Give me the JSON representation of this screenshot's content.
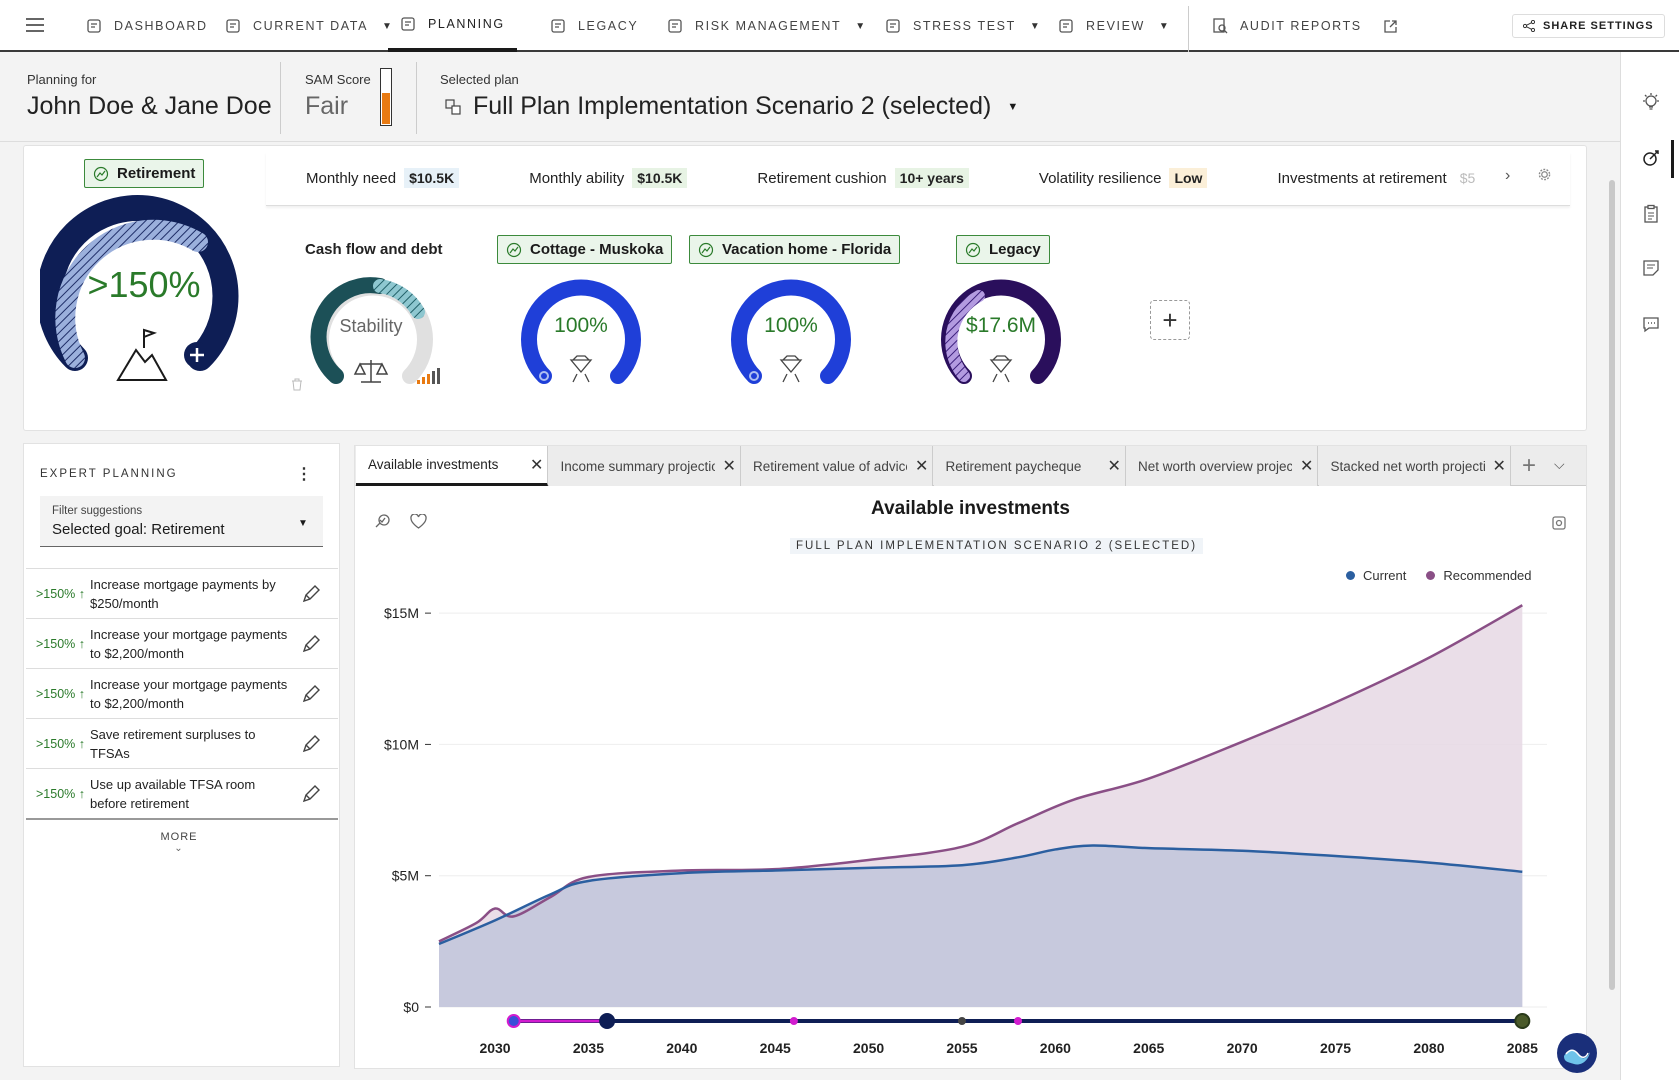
{
  "nav": {
    "items": [
      {
        "label": "DASHBOARD",
        "dropdown": false,
        "icon": "dashboard-icon"
      },
      {
        "label": "CURRENT DATA",
        "dropdown": true,
        "icon": "people-icon"
      },
      {
        "label": "PLANNING",
        "dropdown": false,
        "icon": "planning-icon",
        "active": true
      },
      {
        "label": "LEGACY",
        "dropdown": false,
        "icon": "legacy-icon"
      },
      {
        "label": "RISK MANAGEMENT",
        "dropdown": true,
        "icon": "shield-icon"
      },
      {
        "label": "STRESS TEST",
        "dropdown": true,
        "icon": "diamond-icon"
      },
      {
        "label": "REVIEW",
        "dropdown": true,
        "icon": "review-icon"
      }
    ],
    "audit_label": "AUDIT REPORTS",
    "share_label": "SHARE SETTINGS"
  },
  "header": {
    "planning_for_label": "Planning for",
    "client_names": "John Doe & Jane Doe",
    "sam_label": "SAM Score",
    "sam_value": "Fair",
    "sam_level": 0.55,
    "selected_plan_label": "Selected plan",
    "selected_plan": "Full Plan Implementation Scenario 2 (selected)"
  },
  "goals": {
    "retirement": {
      "label": "Retirement",
      "value": ">150%"
    },
    "metrics": [
      {
        "label": "Monthly need",
        "value": "$10.5K",
        "tone": "blue"
      },
      {
        "label": "Monthly ability",
        "value": "$10.5K",
        "tone": "green"
      },
      {
        "label": "Retirement cushion",
        "value": "10+ years",
        "tone": "green"
      },
      {
        "label": "Volatility resilience",
        "value": "Low",
        "tone": "tan"
      },
      {
        "label": "Investments at retirement",
        "value": "$5",
        "tone": "none"
      }
    ],
    "cashflow": {
      "label": "Cash flow and debt",
      "value": "Stability"
    },
    "others": [
      {
        "label": "Cottage - Muskoka",
        "value": "100%"
      },
      {
        "label": "Vacation home - Florida",
        "value": "100%"
      },
      {
        "label": "Legacy",
        "value": "$17.6M"
      }
    ]
  },
  "expert": {
    "title": "EXPERT PLANNING",
    "filter_label": "Filter suggestions",
    "filter_value": "Selected goal: Retirement",
    "suggestions": [
      {
        "pct": ">150%",
        "text": "Increase mortgage payments by $250/month"
      },
      {
        "pct": ">150%",
        "text": "Increase your mortgage payments to $2,200/month"
      },
      {
        "pct": ">150%",
        "text": "Increase your mortgage payments to $2,200/month"
      },
      {
        "pct": ">150%",
        "text": "Save retirement surpluses to TFSAs"
      },
      {
        "pct": ">150%",
        "text": "Use up available TFSA room before retirement"
      }
    ],
    "more_label": "MORE"
  },
  "tabs": [
    {
      "label": "Available investments",
      "active": true
    },
    {
      "label": "Income summary projection",
      "active": false
    },
    {
      "label": "Retirement value of advice",
      "active": false
    },
    {
      "label": "Retirement paycheque",
      "active": false
    },
    {
      "label": "Net worth overview projection",
      "active": false
    },
    {
      "label": "Stacked net worth projection",
      "active": false
    }
  ],
  "chart_panel": {
    "title": "Available investments",
    "plan_tag": "FULL PLAN IMPLEMENTATION SCENARIO 2 (SELECTED)"
  },
  "chart_data": {
    "type": "area",
    "title": "Available investments",
    "xlim": [
      2027,
      2086
    ],
    "ylim": [
      0,
      15.5
    ],
    "y_unit": "$M",
    "xticks": [
      2030,
      2035,
      2040,
      2045,
      2050,
      2055,
      2060,
      2065,
      2070,
      2075,
      2080,
      2085
    ],
    "yticks": [
      {
        "v": 0,
        "label": "$0"
      },
      {
        "v": 5,
        "label": "$5M"
      },
      {
        "v": 10,
        "label": "$10M"
      },
      {
        "v": 15,
        "label": "$15M"
      }
    ],
    "series": [
      {
        "name": "Current",
        "color": "#2b5fa0",
        "fill": "#c3c6dc",
        "x": [
          2027,
          2030,
          2033,
          2035,
          2040,
          2045,
          2050,
          2055,
          2058,
          2060,
          2062,
          2065,
          2070,
          2075,
          2080,
          2085
        ],
        "y": [
          2.4,
          3.3,
          4.3,
          4.8,
          5.1,
          5.2,
          5.3,
          5.4,
          5.7,
          6.0,
          6.15,
          6.05,
          5.95,
          5.75,
          5.5,
          5.15
        ]
      },
      {
        "name": "Recommended",
        "color": "#8a4f86",
        "fill": "#e6d8e4",
        "x": [
          2027,
          2029,
          2030,
          2031,
          2033,
          2035,
          2040,
          2045,
          2050,
          2055,
          2058,
          2061,
          2065,
          2070,
          2075,
          2080,
          2085
        ],
        "y": [
          2.5,
          3.2,
          3.75,
          3.45,
          4.2,
          4.95,
          5.2,
          5.25,
          5.6,
          6.1,
          7.0,
          7.9,
          8.7,
          10.1,
          11.6,
          13.3,
          15.3
        ]
      }
    ],
    "legend": [
      "Current",
      "Recommended"
    ],
    "legend_position": "top-right",
    "milestones": [
      2031,
      2036,
      2046,
      2055,
      2058,
      2085
    ]
  }
}
